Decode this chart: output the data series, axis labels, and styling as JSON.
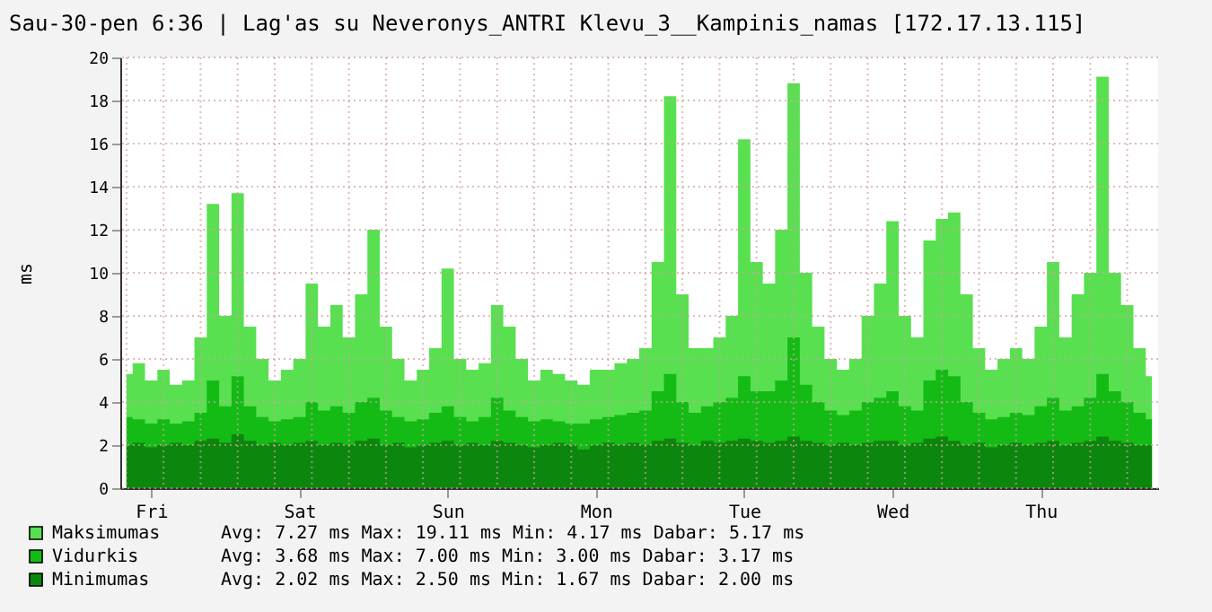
{
  "chart_data": {
    "type": "area",
    "title": "Sau-30-pen 6:36 | Lag'as su Neveronys_ANTRI Klevu_3__Kampinis_namas [172.17.13.115]",
    "ylabel": "ms",
    "categories": [
      null,
      null,
      "Fri",
      null,
      null,
      null,
      null,
      null,
      null,
      null,
      null,
      null,
      null,
      null,
      "Sat",
      null,
      null,
      null,
      null,
      null,
      null,
      null,
      null,
      null,
      null,
      null,
      "Sun",
      null,
      null,
      null,
      null,
      null,
      null,
      null,
      null,
      null,
      null,
      null,
      "Mon",
      null,
      null,
      null,
      null,
      null,
      null,
      null,
      null,
      null,
      null,
      null,
      "Tue",
      null,
      null,
      null,
      null,
      null,
      null,
      null,
      null,
      null,
      null,
      null,
      "Wed",
      null,
      null,
      null,
      null,
      null,
      null,
      null,
      null,
      null,
      null,
      null,
      "Thu",
      null,
      null,
      null,
      null,
      null,
      null,
      null,
      null,
      null
    ],
    "series": [
      {
        "name": "Maksimumas",
        "color": "#58e050",
        "values": [
          5.3,
          5.8,
          5.0,
          5.5,
          4.8,
          5.0,
          7.0,
          13.2,
          8.0,
          13.7,
          7.5,
          6.0,
          5.0,
          5.5,
          6.0,
          9.5,
          7.5,
          8.5,
          7.0,
          9.0,
          12.0,
          7.5,
          6.0,
          5.0,
          5.5,
          6.5,
          10.2,
          6.0,
          5.5,
          5.8,
          8.5,
          7.5,
          6.0,
          5.0,
          5.5,
          5.3,
          5.0,
          4.8,
          5.5,
          5.5,
          5.8,
          6.0,
          6.5,
          10.5,
          18.2,
          9.0,
          6.5,
          6.5,
          7.0,
          8.0,
          16.2,
          10.5,
          9.5,
          12.0,
          18.8,
          10.0,
          7.5,
          6.0,
          5.5,
          6.0,
          8.0,
          9.5,
          12.4,
          8.0,
          7.0,
          11.5,
          12.5,
          12.8,
          9.0,
          6.5,
          5.5,
          6.0,
          6.5,
          6.0,
          7.5,
          10.5,
          7.0,
          9.0,
          10.0,
          19.1,
          10.0,
          8.5,
          6.5,
          5.2
        ]
      },
      {
        "name": "Vidurkis",
        "color": "#14bb14",
        "values": [
          3.3,
          3.2,
          3.0,
          3.2,
          3.0,
          3.1,
          3.5,
          5.0,
          3.8,
          5.2,
          3.8,
          3.3,
          3.1,
          3.2,
          3.3,
          4.0,
          3.6,
          3.8,
          3.5,
          4.0,
          4.2,
          3.6,
          3.3,
          3.1,
          3.2,
          3.5,
          3.8,
          3.3,
          3.1,
          3.3,
          4.2,
          3.6,
          3.3,
          3.1,
          3.2,
          3.1,
          3.0,
          3.0,
          3.2,
          3.3,
          3.4,
          3.5,
          3.6,
          4.5,
          5.3,
          4.0,
          3.5,
          3.8,
          4.0,
          4.2,
          5.2,
          4.5,
          4.5,
          5.0,
          7.0,
          4.8,
          4.0,
          3.6,
          3.4,
          3.6,
          4.0,
          4.2,
          4.5,
          3.8,
          3.6,
          5.0,
          5.5,
          5.2,
          4.0,
          3.5,
          3.2,
          3.3,
          3.5,
          3.4,
          3.8,
          4.2,
          3.6,
          3.8,
          4.2,
          5.3,
          4.5,
          4.0,
          3.5,
          3.2
        ]
      },
      {
        "name": "Minimumas",
        "color": "#0d860d",
        "values": [
          2.0,
          2.1,
          1.9,
          2.0,
          2.1,
          2.0,
          2.2,
          2.3,
          2.1,
          2.5,
          2.2,
          2.0,
          2.1,
          2.0,
          2.1,
          2.2,
          2.0,
          2.1,
          2.0,
          2.2,
          2.3,
          2.0,
          2.1,
          1.9,
          2.0,
          2.1,
          2.2,
          2.0,
          2.1,
          2.0,
          2.2,
          2.1,
          2.0,
          1.9,
          2.0,
          2.1,
          2.0,
          1.8,
          2.0,
          2.1,
          2.0,
          2.1,
          2.0,
          2.2,
          2.3,
          2.1,
          2.0,
          2.2,
          2.1,
          2.2,
          2.3,
          2.2,
          2.1,
          2.2,
          2.4,
          2.2,
          2.1,
          2.0,
          2.1,
          2.0,
          2.1,
          2.2,
          2.2,
          2.0,
          2.1,
          2.3,
          2.4,
          2.2,
          2.0,
          2.1,
          1.9,
          2.0,
          2.1,
          2.0,
          2.1,
          2.2,
          2.0,
          2.1,
          2.2,
          2.4,
          2.2,
          2.1,
          2.0,
          2.0
        ]
      }
    ],
    "ylim": [
      0,
      20
    ],
    "yticks": [
      0,
      2,
      4,
      6,
      8,
      10,
      12,
      14,
      16,
      18,
      20
    ],
    "grid": true,
    "legend": "bottom",
    "annotations": [
      "Avg:   7.27 ms   Max:  19.11 ms   Min:   4.17 ms   Dabar:   5.17 ms",
      "Avg:   3.68 ms   Max:   7.00 ms   Min:   3.00 ms   Dabar:   3.17 ms",
      "   Avg:   2.02 ms     Max:   2.50 ms     Min:   1.67 ms     Dabar:   2.00 ms"
    ]
  }
}
